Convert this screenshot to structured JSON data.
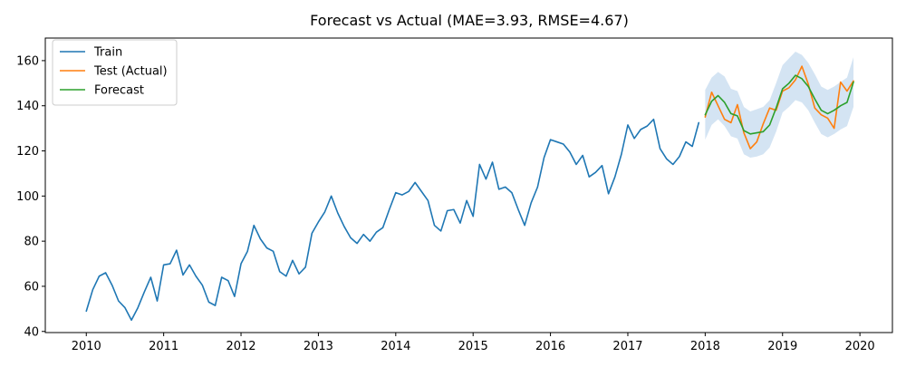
{
  "chart_data": {
    "type": "line",
    "title": "Forecast vs Actual (MAE=3.93, RMSE=4.67)",
    "xlabel": "",
    "ylabel": "",
    "xlim": [
      2009.47,
      2020.42
    ],
    "ylim": [
      39.5,
      170
    ],
    "x_ticks": [
      2010,
      2011,
      2012,
      2013,
      2014,
      2015,
      2016,
      2017,
      2018,
      2019,
      2020
    ],
    "x_tick_labels": [
      "2010",
      "2011",
      "2012",
      "2013",
      "2014",
      "2015",
      "2016",
      "2017",
      "2018",
      "2019",
      "2020"
    ],
    "y_ticks": [
      40,
      60,
      80,
      100,
      120,
      140,
      160
    ],
    "y_tick_labels": [
      "40",
      "60",
      "80",
      "100",
      "120",
      "140",
      "160"
    ],
    "legend_position": "top-left",
    "colors": {
      "train": "#1f77b4",
      "test": "#ff7f0e",
      "forecast": "#2ca02c",
      "band": "#c6dbef"
    },
    "series": [
      {
        "name": "Train",
        "key": "train",
        "x_start": 2010,
        "step": 0.08333333,
        "values": [
          49,
          58.5,
          64.5,
          66,
          60.5,
          53.5,
          50.5,
          45,
          50.5,
          57.5,
          64,
          53.5,
          69.5,
          70,
          76,
          65,
          69.5,
          64.5,
          60.5,
          53,
          51.5,
          64,
          62.5,
          55.5,
          70,
          75.5,
          87,
          81,
          77,
          75.5,
          66.5,
          64.5,
          71.5,
          65.5,
          68.5,
          83.5,
          88.5,
          93,
          100,
          92.5,
          86.5,
          81.5,
          79,
          83,
          80,
          84,
          86,
          94,
          101.5,
          100.5,
          102,
          106,
          102,
          98,
          87,
          84.5,
          93.5,
          94,
          88,
          98,
          91,
          114,
          107.5,
          115,
          103,
          104,
          101.5,
          94,
          87,
          97,
          104,
          117,
          125,
          124,
          123,
          119.5,
          114,
          118,
          108.5,
          110.5,
          113.5,
          101,
          108.5,
          118.5,
          131.5,
          125.5,
          129.5,
          131,
          134,
          121,
          116.5,
          114,
          117.5,
          124,
          122,
          132.5
        ]
      },
      {
        "name": "Test (Actual)",
        "key": "test",
        "x_start": 2018,
        "step": 0.08333333,
        "values": [
          135,
          146,
          140,
          134,
          132.5,
          140.5,
          128,
          121,
          124,
          132,
          139,
          138,
          146.5,
          148,
          151.5,
          157.5,
          149.5,
          139,
          136,
          134.5,
          130,
          150.5,
          146.5,
          151
        ]
      },
      {
        "name": "Forecast",
        "key": "forecast",
        "x_start": 2018,
        "step": 0.08333333,
        "values": [
          136,
          142,
          144.5,
          141.5,
          136.5,
          135.5,
          129,
          127.5,
          128,
          128.5,
          131.5,
          139,
          147.5,
          150,
          153.5,
          152,
          148.5,
          143,
          138,
          136.5,
          138,
          140,
          141.5,
          150.5
        ]
      }
    ],
    "confidence_band": {
      "name": "Forecast interval",
      "x_start": 2018,
      "step": 0.08333333,
      "upper": [
        147,
        152.5,
        155,
        153,
        147.5,
        146.5,
        139.5,
        137.5,
        138.5,
        139.5,
        142.5,
        150,
        158,
        161,
        164,
        162.5,
        159,
        154,
        148.5,
        147,
        148.5,
        150.5,
        152.5,
        161.5
      ],
      "lower": [
        125,
        131.5,
        134,
        131,
        126.5,
        125.5,
        118.5,
        117,
        117.5,
        118.5,
        121.5,
        128.5,
        137,
        139.5,
        142.5,
        141.5,
        138,
        132.5,
        127.5,
        126,
        127.5,
        129.5,
        131,
        139.5
      ]
    }
  }
}
